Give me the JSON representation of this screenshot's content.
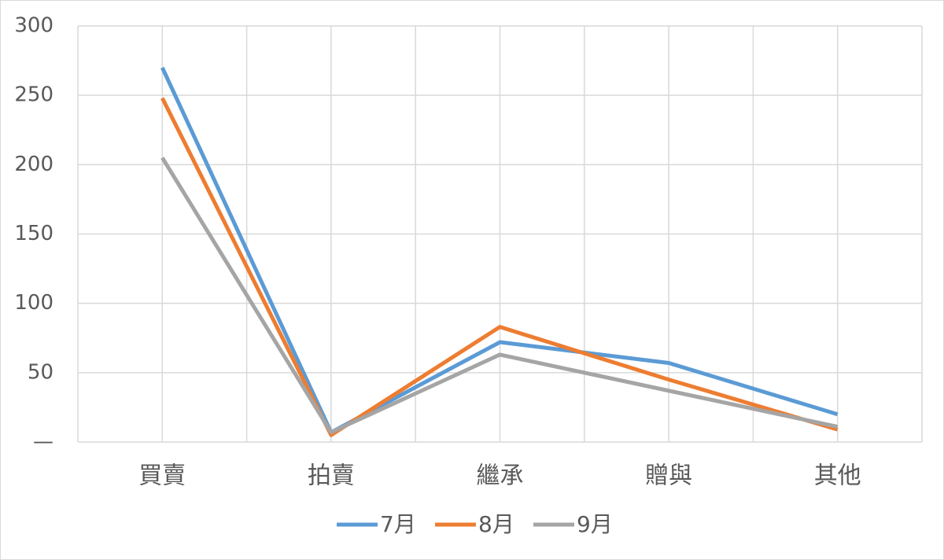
{
  "chart_data": {
    "type": "line",
    "categories": [
      "買賣",
      "拍賣",
      "繼承",
      "贈與",
      "其他"
    ],
    "series": [
      {
        "name": "7月",
        "color": "#5b9bd5",
        "values": [
          270,
          7,
          72,
          57,
          20
        ]
      },
      {
        "name": "8月",
        "color": "#ed7d31",
        "values": [
          248,
          5,
          83,
          45,
          9
        ]
      },
      {
        "name": "9月",
        "color": "#a5a5a5",
        "values": [
          205,
          7,
          63,
          37,
          11
        ]
      }
    ],
    "ylim": [
      0,
      300
    ],
    "yticks": [
      {
        "value": 0,
        "label": "—"
      },
      50,
      100,
      150,
      200,
      250,
      300
    ],
    "grid": true,
    "legend": "bottom"
  }
}
